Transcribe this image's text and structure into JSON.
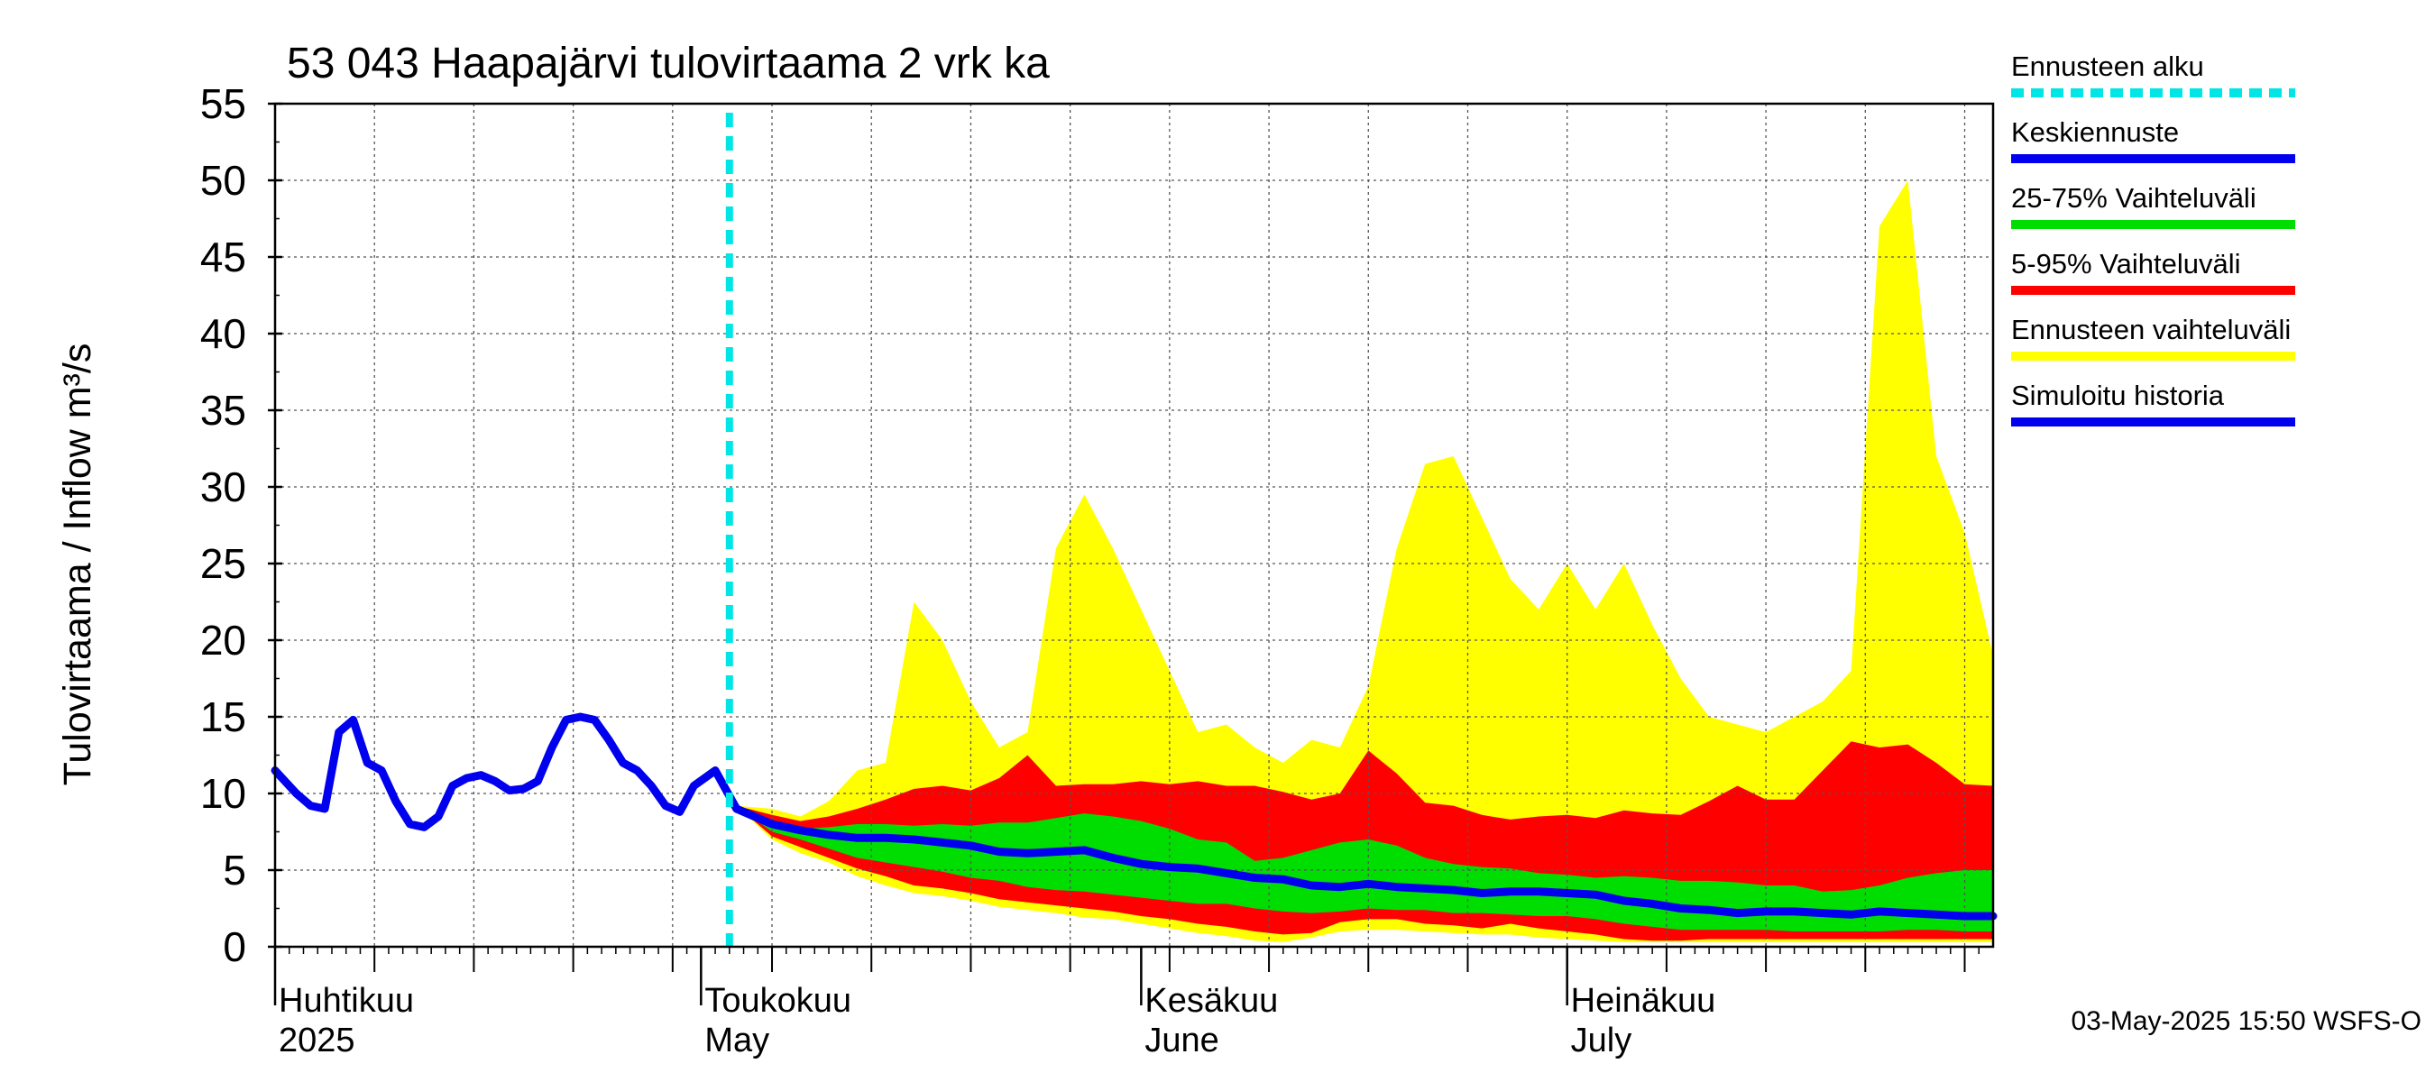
{
  "chart_data": {
    "type": "area",
    "title": "53 043 Haapajärvi tulovirtaama 2 vrk ka",
    "ylabel": "Tulovirtaama / Inflow    m³/s",
    "ylim": [
      0,
      55
    ],
    "yticks": [
      "0",
      "5",
      "10",
      "15",
      "20",
      "25",
      "30",
      "35",
      "40",
      "45",
      "50",
      "55"
    ],
    "x_range": [
      "2025-04-01",
      "2025-07-31"
    ],
    "month_labels": [
      {
        "date": "2025-04-01",
        "fi": "Huhtikuu",
        "en": "2025"
      },
      {
        "date": "2025-05-01",
        "fi": "Toukokuu",
        "en": "May"
      },
      {
        "date": "2025-06-01",
        "fi": "Kesäkuu",
        "en": "June"
      },
      {
        "date": "2025-07-01",
        "fi": "Heinäkuu",
        "en": "July"
      }
    ],
    "forecast_start_day": 32,
    "footer": "03-May-2025 15:50 WSFS-O",
    "legend": [
      {
        "label": "Ennusteen alku",
        "color": "#00e5e5",
        "style": "dashed"
      },
      {
        "label": "Keskiennuste",
        "color": "#0000ee",
        "style": "solid"
      },
      {
        "label": "25-75% Vaihteluväli",
        "color": "#00dd00",
        "style": "solid"
      },
      {
        "label": "5-95% Vaihteluväli",
        "color": "#ff0000",
        "style": "solid"
      },
      {
        "label": "Ennusteen vaihteluväli",
        "color": "#ffff00",
        "style": "solid"
      },
      {
        "label": "Simuloitu historia",
        "color": "#0000ee",
        "style": "solid"
      }
    ],
    "history": {
      "name": "Simuloitu historia",
      "days": [
        0,
        1.5,
        2.5,
        3.5,
        4.5,
        5.5,
        6.5,
        7.5,
        8.5,
        9.5,
        10.5,
        11.5,
        12.5,
        13.5,
        14.5,
        15.5,
        16.5,
        17.5,
        18.5,
        19.5,
        20.5,
        21.5,
        22.5,
        23.5,
        24.5,
        25.5,
        26.5,
        27.5,
        28.5,
        29.5,
        31,
        32.5
      ],
      "values": [
        11.5,
        10,
        9.2,
        9,
        14,
        14.8,
        12,
        11.5,
        9.5,
        8,
        7.8,
        8.5,
        10.5,
        11,
        11.2,
        10.8,
        10.2,
        10.3,
        10.8,
        13,
        14.8,
        15,
        14.8,
        13.5,
        12,
        11.5,
        10.5,
        9.2,
        8.8,
        10.5,
        11.5,
        9
      ]
    },
    "forecast": {
      "days": [
        32.5,
        35,
        37,
        39,
        41,
        43,
        45,
        47,
        49,
        51,
        53,
        55,
        57,
        59,
        61,
        63,
        65,
        67,
        69,
        71,
        73,
        75,
        77,
        79,
        81,
        83,
        85,
        87,
        89,
        91,
        93,
        95,
        97,
        99,
        101,
        103,
        105,
        107,
        109,
        111,
        113,
        115,
        117,
        119,
        121
      ],
      "series": [
        {
          "name": "Ennusteen vaihteluväli max",
          "values": [
            9.2,
            9,
            8.5,
            9.5,
            11.5,
            12,
            22.5,
            20,
            16,
            13,
            14,
            26,
            29.5,
            26,
            22,
            18,
            14,
            14.5,
            13,
            12,
            13.5,
            13,
            17,
            26,
            31.5,
            32,
            28,
            24,
            22,
            25,
            22,
            25,
            21,
            17.5,
            15,
            14.5,
            14,
            15,
            16,
            18,
            47,
            50,
            32,
            27,
            19
          ]
        },
        {
          "name": "5-95% ylä",
          "values": [
            9.2,
            8.6,
            8.2,
            8.5,
            9,
            9.6,
            10.3,
            10.5,
            10.2,
            11,
            12.5,
            10.5,
            10.6,
            10.6,
            10.8,
            10.6,
            10.8,
            10.5,
            10.5,
            10.1,
            9.6,
            10,
            12.8,
            11.3,
            9.4,
            9.2,
            8.6,
            8.3,
            8.5,
            8.6,
            8.4,
            8.9,
            8.7,
            8.6,
            9.5,
            10.5,
            9.6,
            9.6,
            11.5,
            13.4,
            13,
            13.2,
            12,
            10.6,
            10.5
          ]
        },
        {
          "name": "25-75% ylä",
          "values": [
            9.2,
            8.2,
            7.7,
            7.8,
            8,
            8,
            7.9,
            8,
            7.9,
            8.1,
            8.1,
            8.4,
            8.7,
            8.5,
            8.2,
            7.7,
            7,
            6.8,
            5.6,
            5.8,
            6.3,
            6.8,
            7,
            6.6,
            5.8,
            5.4,
            5.2,
            5.1,
            4.8,
            4.7,
            4.5,
            4.6,
            4.5,
            4.3,
            4.3,
            4.2,
            4,
            4,
            3.6,
            3.7,
            4,
            4.5,
            4.8,
            5,
            5
          ]
        },
        {
          "name": "Keskiennuste",
          "values": [
            9,
            8,
            7.6,
            7.3,
            7.1,
            7.1,
            7,
            6.8,
            6.6,
            6.2,
            6.1,
            6.2,
            6.3,
            5.8,
            5.4,
            5.2,
            5.1,
            4.8,
            4.5,
            4.4,
            4,
            3.9,
            4.1,
            3.9,
            3.8,
            3.7,
            3.5,
            3.6,
            3.6,
            3.5,
            3.4,
            3,
            2.8,
            2.5,
            2.4,
            2.2,
            2.3,
            2.3,
            2.2,
            2.1,
            2.3,
            2.2,
            2.1,
            2,
            2
          ]
        },
        {
          "name": "25-75% ala",
          "values": [
            9.2,
            7.5,
            7,
            6.4,
            5.8,
            5.5,
            5.2,
            4.9,
            4.5,
            4.3,
            3.9,
            3.7,
            3.6,
            3.4,
            3.2,
            3,
            2.8,
            2.8,
            2.5,
            2.3,
            2.2,
            2.3,
            2.5,
            2.4,
            2.4,
            2.2,
            2.2,
            2.1,
            2,
            2,
            1.8,
            1.5,
            1.3,
            1.1,
            1.1,
            1.1,
            1.1,
            1,
            1,
            1,
            1,
            1.1,
            1.1,
            1,
            1
          ]
        },
        {
          "name": "5-95% ala",
          "values": [
            9.2,
            7.2,
            6.5,
            5.8,
            5.1,
            4.6,
            4,
            3.8,
            3.5,
            3.1,
            2.9,
            2.7,
            2.5,
            2.3,
            2,
            1.8,
            1.5,
            1.3,
            1,
            0.8,
            0.9,
            1.6,
            1.8,
            1.8,
            1.5,
            1.4,
            1.2,
            1.5,
            1.2,
            1,
            0.8,
            0.5,
            0.4,
            0.4,
            0.5,
            0.5,
            0.5,
            0.5,
            0.5,
            0.5,
            0.5,
            0.5,
            0.5,
            0.5,
            0.5
          ]
        },
        {
          "name": "Ennusteen vaihteluväli min",
          "values": [
            9.2,
            7,
            6.1,
            5.5,
            4.6,
            4,
            3.5,
            3.3,
            3,
            2.6,
            2.4,
            2.2,
            1.9,
            1.8,
            1.5,
            1.2,
            0.9,
            0.7,
            0.4,
            0.3,
            0.6,
            1,
            1.1,
            1.1,
            1,
            0.9,
            0.8,
            0.8,
            0.6,
            0.5,
            0.4,
            0.3,
            0.3,
            0.3,
            0.3,
            0.3,
            0.3,
            0.3,
            0.3,
            0.3,
            0.3,
            0.3,
            0.3,
            0.3,
            0.3
          ]
        }
      ]
    }
  }
}
